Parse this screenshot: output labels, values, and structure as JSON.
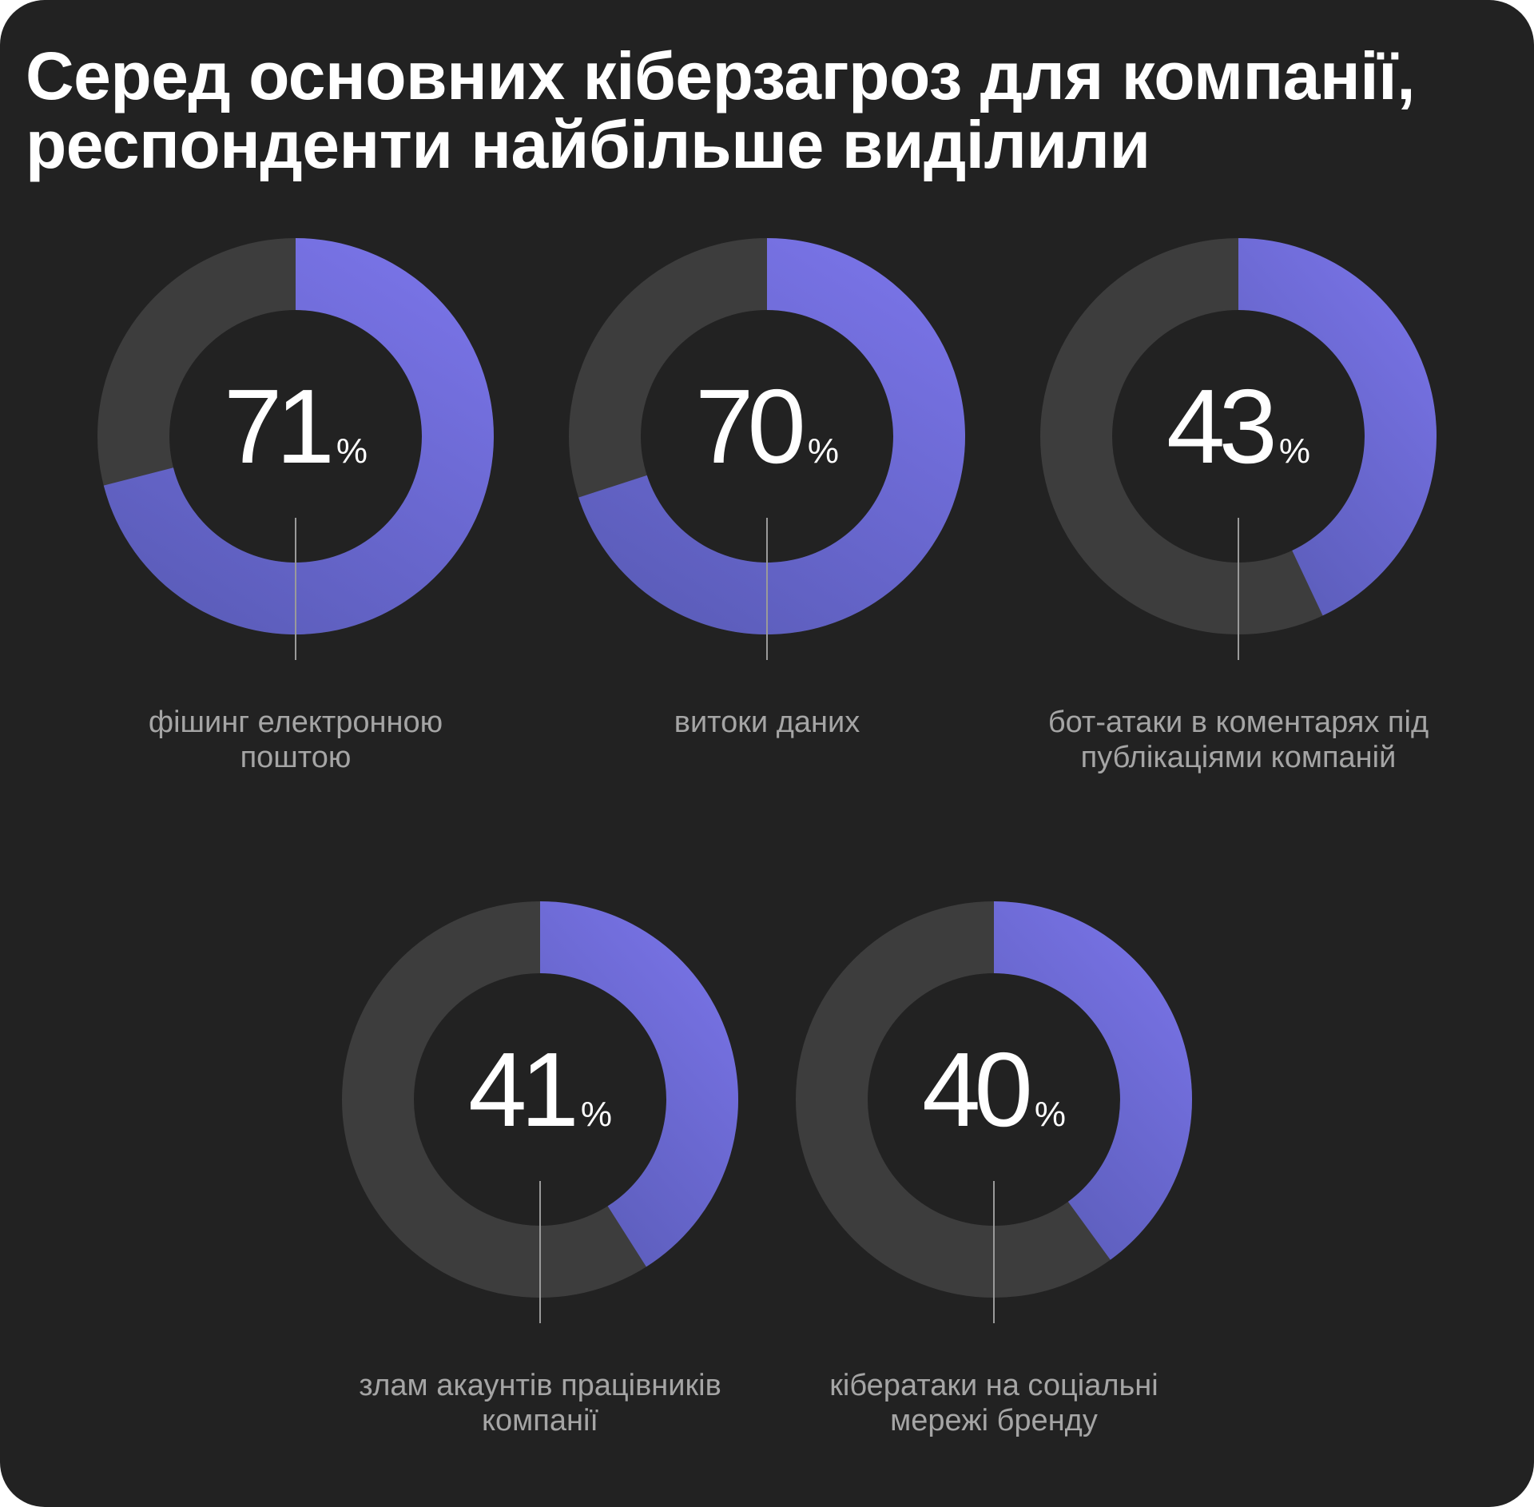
{
  "title": {
    "line1": "Серед основних кіберзагроз для компанії,",
    "line2": "респонденти найбільше виділили"
  },
  "colors": {
    "background": "#222222",
    "track": "#3d3d3d",
    "accent_light": "#7a74e8",
    "accent_dark": "#5a5cb8",
    "label_text": "#a5a5a5"
  },
  "chart_data": {
    "type": "pie",
    "unit": "%",
    "items": [
      {
        "value": 71,
        "label": "фішинг електронною поштою"
      },
      {
        "value": 70,
        "label": "витоки даних"
      },
      {
        "value": 43,
        "label": "бот-атаки в коментарях під публікаціями компаній"
      },
      {
        "value": 41,
        "label": "злам акаунтів працівників компанії"
      },
      {
        "value": 40,
        "label": "кібератаки на соціальні мережі бренду"
      }
    ]
  },
  "charts": [
    {
      "value": "71",
      "unit": "%",
      "label": "фішинг електронною поштою"
    },
    {
      "value": "70",
      "unit": "%",
      "label": "витоки даних"
    },
    {
      "value": "43",
      "unit": "%",
      "label": "бот-атаки в коментарях під публікаціями компаній"
    },
    {
      "value": "41",
      "unit": "%",
      "label": "злам акаунтів працівників компанії"
    },
    {
      "value": "40",
      "unit": "%",
      "label": "кібератаки на соціальні мережі бренду"
    }
  ]
}
